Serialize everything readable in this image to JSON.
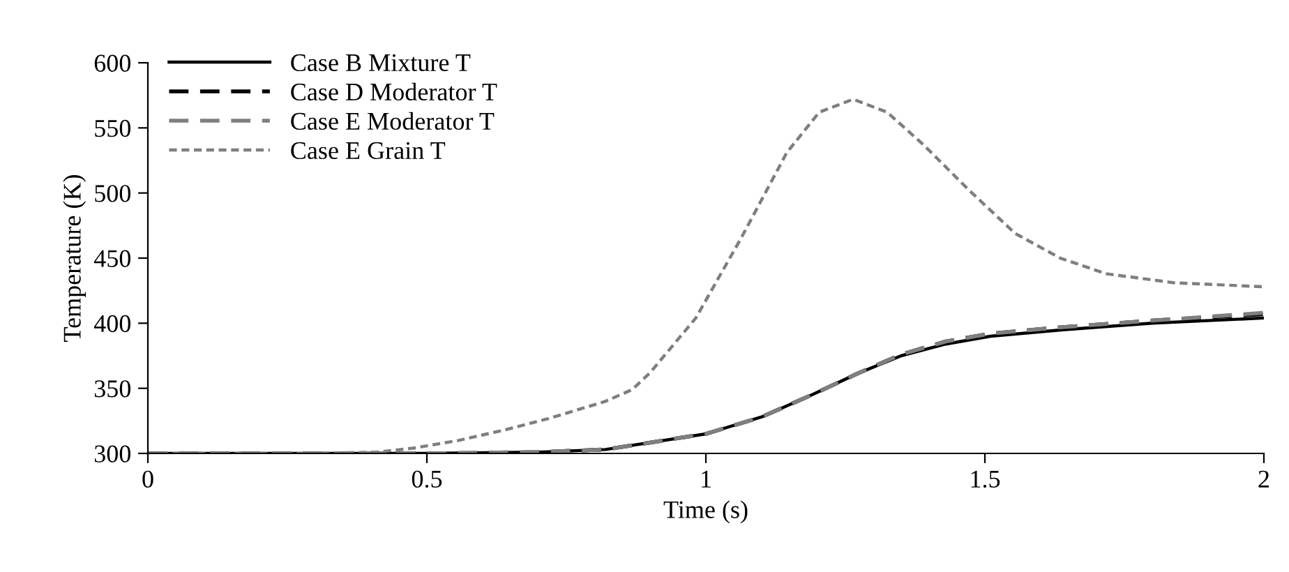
{
  "chart_data": {
    "type": "line",
    "xlabel": "Time (s)",
    "ylabel": "Temperature (K)",
    "xlim": [
      0,
      2
    ],
    "xticks": [
      0,
      0.5,
      1,
      1.5,
      2
    ],
    "ylim": [
      300,
      600
    ],
    "yticks": [
      300,
      350,
      400,
      450,
      500,
      550,
      600
    ],
    "grid": false,
    "legend": "top left",
    "marker": "none",
    "series": [
      {
        "name": "Case B Mixture T",
        "color": "#000000",
        "line_style": "solid",
        "x": [
          0,
          0.3,
          0.5,
          0.7,
          0.82,
          1.0,
          1.1,
          1.19,
          1.27,
          1.35,
          1.43,
          1.51,
          1.64,
          1.8,
          2.0
        ],
        "values": [
          300,
          300,
          300,
          301,
          303,
          315,
          328,
          345,
          361,
          375,
          384,
          390,
          395,
          400,
          404
        ]
      },
      {
        "name": "Case D Moderator T",
        "color": "#000000",
        "line_style": "dashed",
        "x": [
          0,
          0.3,
          0.5,
          0.7,
          0.82,
          1.0,
          1.1,
          1.19,
          1.27,
          1.35,
          1.43,
          1.51,
          1.64,
          1.8,
          2.0
        ],
        "values": [
          300,
          300,
          300,
          301,
          303,
          315,
          328,
          345,
          361,
          376,
          386,
          392,
          397,
          402,
          407
        ]
      },
      {
        "name": "Case E Moderator T",
        "color": "#7f7f7f",
        "line_style": "dashed",
        "x": [
          0,
          0.3,
          0.5,
          0.7,
          0.82,
          1.0,
          1.1,
          1.19,
          1.27,
          1.35,
          1.43,
          1.51,
          1.64,
          1.8,
          2.0
        ],
        "values": [
          300,
          300,
          300,
          301,
          303,
          315,
          328,
          345,
          361,
          376,
          386,
          392,
          397,
          402,
          408
        ]
      },
      {
        "name": "Case E Grain T",
        "color": "#7f7f7f",
        "line_style": "dotted",
        "x": [
          0,
          0.3,
          0.41,
          0.475,
          0.557,
          0.639,
          0.72,
          0.82,
          0.868,
          0.9,
          0.982,
          1.064,
          1.145,
          1.203,
          1.264,
          1.325,
          1.39,
          1.472,
          1.554,
          1.635,
          1.717,
          1.84,
          2.0
        ],
        "values": [
          300,
          300,
          301,
          304,
          310,
          318,
          327,
          340,
          349,
          362,
          404,
          466,
          531,
          562,
          572,
          562,
          537,
          502,
          469,
          450,
          438,
          431,
          428
        ]
      }
    ]
  }
}
